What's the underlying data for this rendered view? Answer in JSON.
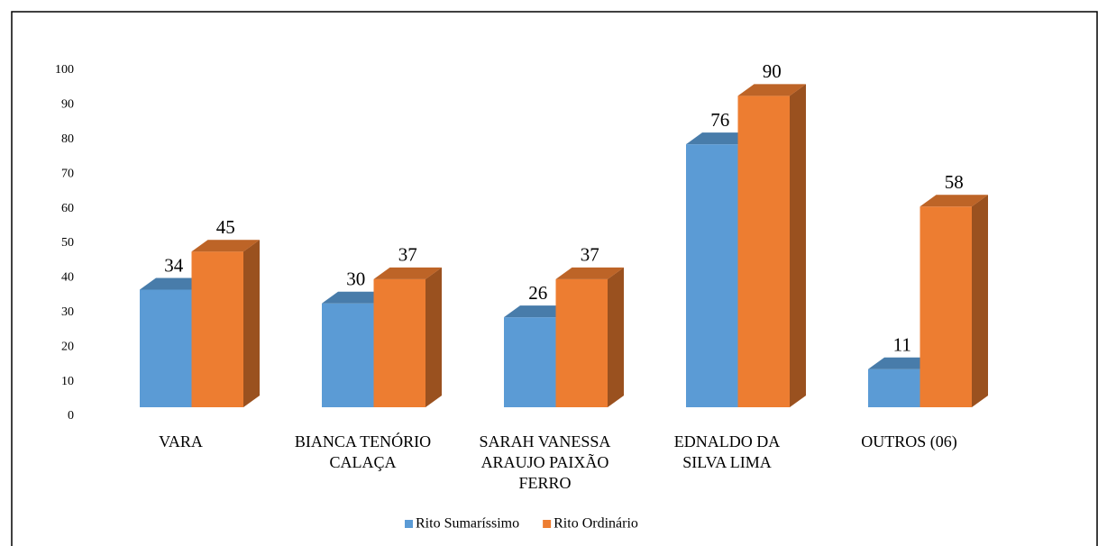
{
  "chart_data": {
    "type": "bar3d",
    "categories": [
      "VARA",
      "BIANCA TENÓRIO CALAÇA",
      "SARAH VANESSA ARAUJO PAIXÃO FERRO",
      "EDNALDO DA SILVA LIMA",
      "OUTROS (06)"
    ],
    "series": [
      {
        "name": "Rito Sumaríssimo",
        "color": "#5b9bd5",
        "values": [
          34,
          30,
          26,
          76,
          11
        ]
      },
      {
        "name": "Rito Ordinário",
        "color": "#ed7d31",
        "values": [
          45,
          37,
          37,
          90,
          58
        ]
      }
    ],
    "ylim": [
      0,
      100
    ],
    "yticks": [
      0,
      10,
      20,
      30,
      40,
      50,
      60,
      70,
      80,
      90,
      100
    ],
    "legend": "bottom",
    "grid": false
  }
}
